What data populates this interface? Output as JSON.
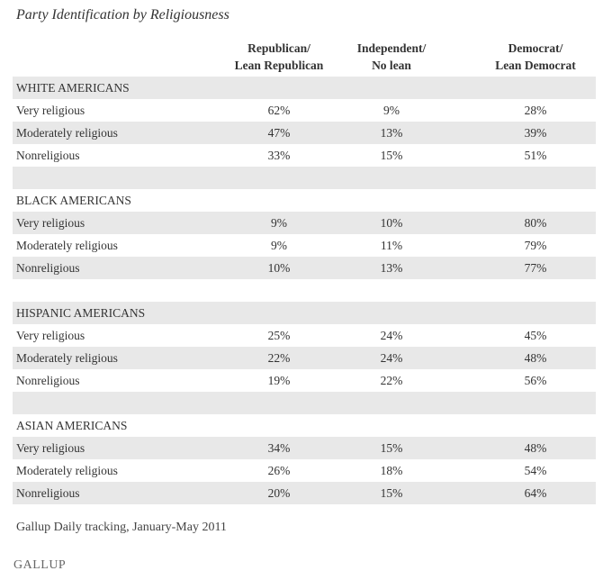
{
  "chart_data": {
    "type": "table",
    "title": "Party Identification by Religiousness",
    "columns": [
      [
        "Republican/",
        "Lean Republican"
      ],
      [
        "Independent/",
        "No lean"
      ],
      [
        "Democrat/",
        "Lean Democrat"
      ]
    ],
    "groups": [
      {
        "name": "WHITE AMERICANS",
        "rows": [
          {
            "label": "Very religious",
            "values": [
              "62%",
              "9%",
              "28%"
            ]
          },
          {
            "label": "Moderately religious",
            "values": [
              "47%",
              "13%",
              "39%"
            ]
          },
          {
            "label": "Nonreligious",
            "values": [
              "33%",
              "15%",
              "51%"
            ]
          }
        ]
      },
      {
        "name": "BLACK AMERICANS",
        "rows": [
          {
            "label": "Very religious",
            "values": [
              "9%",
              "10%",
              "80%"
            ]
          },
          {
            "label": "Moderately religious",
            "values": [
              "9%",
              "11%",
              "79%"
            ]
          },
          {
            "label": "Nonreligious",
            "values": [
              "10%",
              "13%",
              "77%"
            ]
          }
        ]
      },
      {
        "name": "HISPANIC AMERICANS",
        "rows": [
          {
            "label": "Very religious",
            "values": [
              "25%",
              "24%",
              "45%"
            ]
          },
          {
            "label": "Moderately religious",
            "values": [
              "22%",
              "24%",
              "48%"
            ]
          },
          {
            "label": "Nonreligious",
            "values": [
              "19%",
              "22%",
              "56%"
            ]
          }
        ]
      },
      {
        "name": "ASIAN AMERICANS",
        "rows": [
          {
            "label": "Very religious",
            "values": [
              "34%",
              "15%",
              "48%"
            ]
          },
          {
            "label": "Moderately religious",
            "values": [
              "26%",
              "18%",
              "54%"
            ]
          },
          {
            "label": "Nonreligious",
            "values": [
              "20%",
              "15%",
              "64%"
            ]
          }
        ]
      }
    ],
    "source": "Gallup Daily tracking, January-May 2011",
    "logo": "GALLUP"
  }
}
